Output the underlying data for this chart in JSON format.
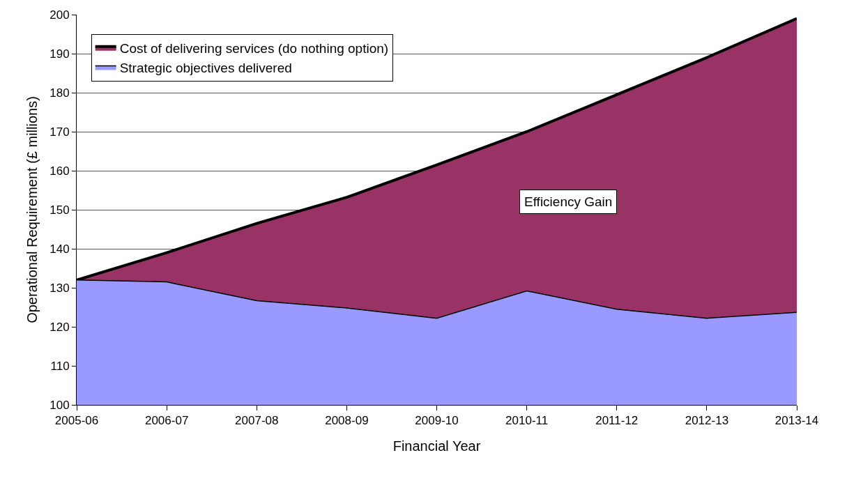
{
  "chart_data": {
    "type": "area",
    "xlabel": "Financial Year",
    "ylabel": "Operational Requirement (£ millions)",
    "categories": [
      "2005-06",
      "2006-07",
      "2007-08",
      "2008-09",
      "2009-10",
      "2010-11",
      "2011-12",
      "2012-13",
      "2013-14"
    ],
    "series": [
      {
        "name": "Cost of delivering services (do nothing option)",
        "color": "#993366",
        "values": [
          132,
          139,
          146.5,
          153.2,
          161.5,
          170,
          179.5,
          189,
          199
        ]
      },
      {
        "name": "Strategic objectives delivered",
        "color": "#9999ff",
        "values": [
          132,
          131.5,
          126.7,
          124.8,
          122.2,
          129.2,
          124.5,
          122.2,
          123.7
        ]
      }
    ],
    "ylim": [
      100,
      200
    ],
    "yticks": [
      100,
      110,
      120,
      130,
      140,
      150,
      160,
      170,
      180,
      190,
      200
    ],
    "grid": "y",
    "legend": "top left",
    "annotations": [
      "Efficiency Gain"
    ]
  }
}
